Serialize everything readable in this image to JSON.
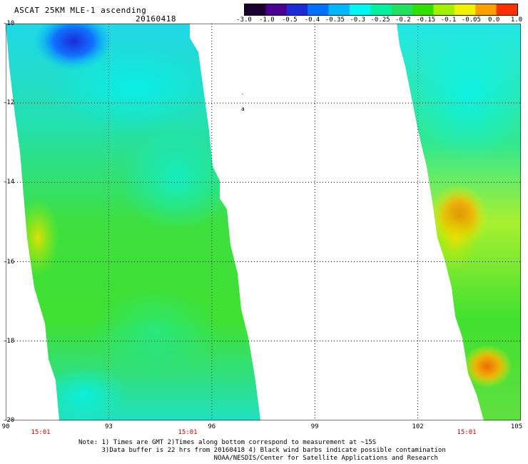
{
  "title": "ASCAT 25KM MLE-1 ascending",
  "date": "20160418",
  "colorbar": {
    "labels": [
      "-3.0",
      "-1.0",
      "-0.5",
      "-0.4",
      "-0.35",
      "-0.3",
      "-0.25",
      "-0.2",
      "-0.15",
      "-0.1",
      "-0.05",
      "0.0",
      "1.0"
    ],
    "colors": [
      "#1a0030",
      "#4a0090",
      "#1b2bd8",
      "#0070ff",
      "#00b8ff",
      "#00f5f5",
      "#00f0a0",
      "#20e060",
      "#30e000",
      "#a0f000",
      "#f0f000",
      "#ffa000",
      "#ff3000"
    ]
  },
  "axes": {
    "x_ticks": [
      "90",
      "93",
      "96",
      "99",
      "102",
      "105"
    ],
    "y_ticks": [
      "-10",
      "-12",
      "-14",
      "-16",
      "-18",
      "-20"
    ]
  },
  "times": [
    "15:01",
    "15:01",
    "15:01"
  ],
  "notes": [
    "Note: 1) Times are GMT 2)Times along bottom correspond to measurement at ~15S",
    "      3)Data buffer is 22 hrs from 20160418 4) Black wind barbs indicate possible contamination",
    "                                   NOAA/NESDIS/Center for Satellite Applications and Research"
  ]
}
